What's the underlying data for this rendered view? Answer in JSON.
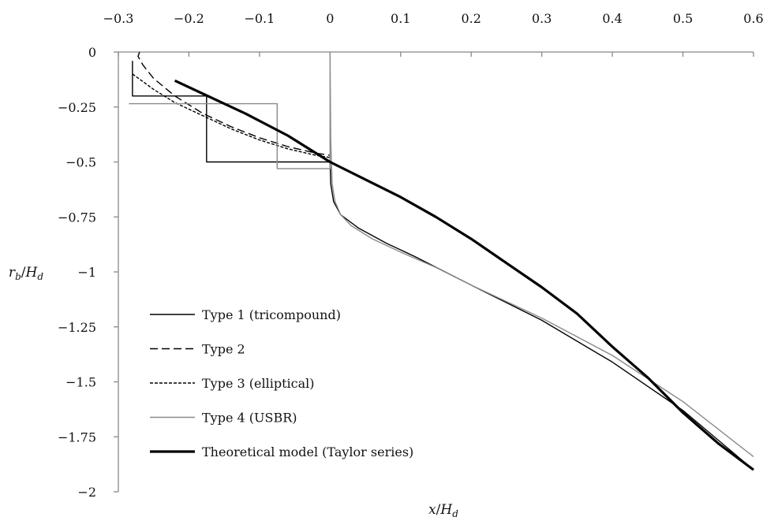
{
  "chart_data": {
    "type": "line",
    "title": "",
    "xlabel": {
      "main": "x",
      "sub": "d",
      "prefix": "/H"
    },
    "ylabel": {
      "main": "r",
      "main_sub": "b",
      "prefix": "/H",
      "sub": "d"
    },
    "xlim": [
      -0.3,
      0.6
    ],
    "ylim": [
      -2,
      0
    ],
    "x_ticks": [
      "−0.3",
      "−0.2",
      "−0.1",
      "0",
      "0.1",
      "0.2",
      "0.3",
      "0.4",
      "0.5",
      "0.6"
    ],
    "x_tick_values": [
      -0.3,
      -0.2,
      -0.1,
      0,
      0.1,
      0.2,
      0.3,
      0.4,
      0.5,
      0.6
    ],
    "y_ticks": [
      "0",
      "−0.25",
      "−0.5",
      "−0.75",
      "−1",
      "−1.25",
      "−1.5",
      "−1.75",
      "−2"
    ],
    "y_tick_values": [
      0,
      -0.25,
      -0.5,
      -0.75,
      -1,
      -1.25,
      -1.5,
      -1.75,
      -2
    ],
    "x_axis_position": "top",
    "grid": false,
    "legend_position": "bottom-left",
    "series": [
      {
        "name": "Type 1 (tricompound)",
        "color": "#000000",
        "style": "solid",
        "width": 1.4,
        "points": [
          [
            -0.28,
            -0.04
          ],
          [
            -0.28,
            -0.2
          ],
          [
            -0.175,
            -0.2
          ],
          [
            -0.175,
            -0.5
          ],
          [
            0,
            -0.5
          ],
          [
            0,
            -0.5
          ],
          [
            0.001,
            -0.6
          ],
          [
            0.005,
            -0.68
          ],
          [
            0.015,
            -0.74
          ],
          [
            0.04,
            -0.8
          ],
          [
            0.08,
            -0.87
          ],
          [
            0.12,
            -0.93
          ],
          [
            0.2,
            -1.06
          ],
          [
            0.3,
            -1.22
          ],
          [
            0.4,
            -1.41
          ],
          [
            0.5,
            -1.63
          ],
          [
            0.6,
            -1.9
          ]
        ]
      },
      {
        "name": "Type 2",
        "color": "#000000",
        "style": "dashed",
        "width": 1.4,
        "points": [
          [
            -0.27,
            0
          ],
          [
            -0.272,
            -0.02
          ],
          [
            -0.265,
            -0.06
          ],
          [
            -0.25,
            -0.12
          ],
          [
            -0.22,
            -0.2
          ],
          [
            -0.18,
            -0.28
          ],
          [
            -0.14,
            -0.34
          ],
          [
            -0.1,
            -0.39
          ],
          [
            -0.06,
            -0.43
          ],
          [
            -0.02,
            -0.46
          ],
          [
            0,
            -0.47
          ]
        ]
      },
      {
        "name": "Type 3 (elliptical)",
        "color": "#000000",
        "style": "dotted",
        "width": 1.4,
        "points": [
          [
            -0.28,
            -0.1
          ],
          [
            -0.25,
            -0.17
          ],
          [
            -0.22,
            -0.23
          ],
          [
            -0.18,
            -0.29
          ],
          [
            -0.14,
            -0.35
          ],
          [
            -0.1,
            -0.4
          ],
          [
            -0.06,
            -0.44
          ],
          [
            -0.02,
            -0.47
          ],
          [
            0,
            -0.48
          ]
        ]
      },
      {
        "name": "Type 4 (USBR)",
        "color": "#8a8a8a",
        "style": "solid",
        "width": 1.4,
        "points": [
          [
            -0.285,
            -0.235
          ],
          [
            -0.075,
            -0.235
          ],
          [
            -0.075,
            -0.53
          ],
          [
            0,
            -0.53
          ],
          [
            0,
            0
          ],
          [
            0.001,
            -0.4
          ],
          [
            0.003,
            -0.6
          ],
          [
            0.007,
            -0.68
          ],
          [
            0.015,
            -0.74
          ],
          [
            0.03,
            -0.79
          ],
          [
            0.06,
            -0.85
          ],
          [
            0.1,
            -0.91
          ],
          [
            0.15,
            -0.98
          ],
          [
            0.2,
            -1.06
          ],
          [
            0.3,
            -1.21
          ],
          [
            0.4,
            -1.38
          ],
          [
            0.5,
            -1.59
          ],
          [
            0.6,
            -1.84
          ]
        ]
      },
      {
        "name": "Theoretical model (Taylor series)",
        "color": "#000000",
        "style": "solid",
        "width": 3.2,
        "points": [
          [
            -0.22,
            -0.13
          ],
          [
            -0.18,
            -0.19
          ],
          [
            -0.12,
            -0.28
          ],
          [
            -0.06,
            -0.38
          ],
          [
            0,
            -0.5
          ],
          [
            0.05,
            -0.58
          ],
          [
            0.1,
            -0.66
          ],
          [
            0.15,
            -0.75
          ],
          [
            0.2,
            -0.85
          ],
          [
            0.25,
            -0.96
          ],
          [
            0.3,
            -1.07
          ],
          [
            0.35,
            -1.19
          ],
          [
            0.4,
            -1.34
          ],
          [
            0.45,
            -1.48
          ],
          [
            0.5,
            -1.64
          ],
          [
            0.55,
            -1.78
          ],
          [
            0.6,
            -1.9
          ]
        ]
      }
    ]
  }
}
